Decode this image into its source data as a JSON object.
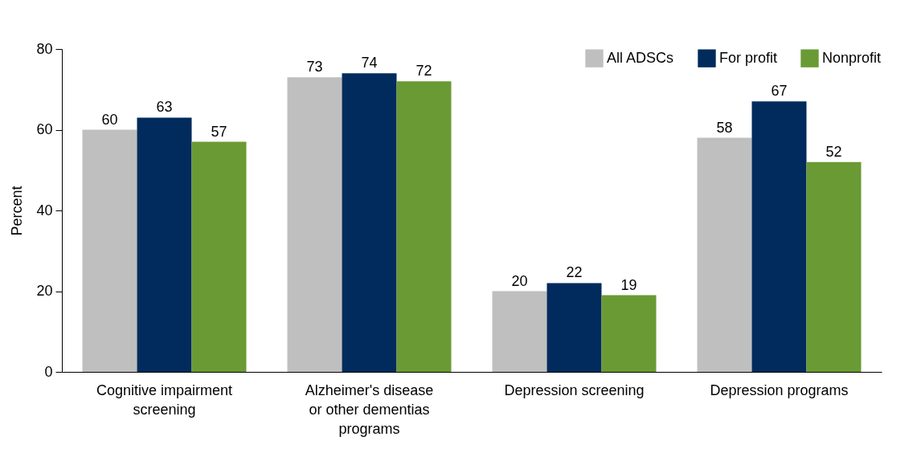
{
  "chart_data": {
    "type": "bar",
    "ylabel": "Percent",
    "categories": [
      "Cognitive impairment screening",
      "Alzheimer's disease or other dementias programs",
      "Depression screening",
      "Depression programs"
    ],
    "series": [
      {
        "name": "All ADSCs",
        "color": "#bfbfbf",
        "values": [
          60,
          73,
          20,
          58
        ]
      },
      {
        "name": "For profit",
        "color": "#002b5c",
        "values": [
          63,
          74,
          22,
          67
        ]
      },
      {
        "name": "Nonprofit",
        "color": "#6a9a34",
        "values": [
          57,
          72,
          19,
          52
        ]
      }
    ],
    "ylim": [
      0,
      80
    ],
    "yticks": [
      0,
      20,
      40,
      60,
      80
    ],
    "grid": false,
    "legend": "top right",
    "data_labels": true
  }
}
